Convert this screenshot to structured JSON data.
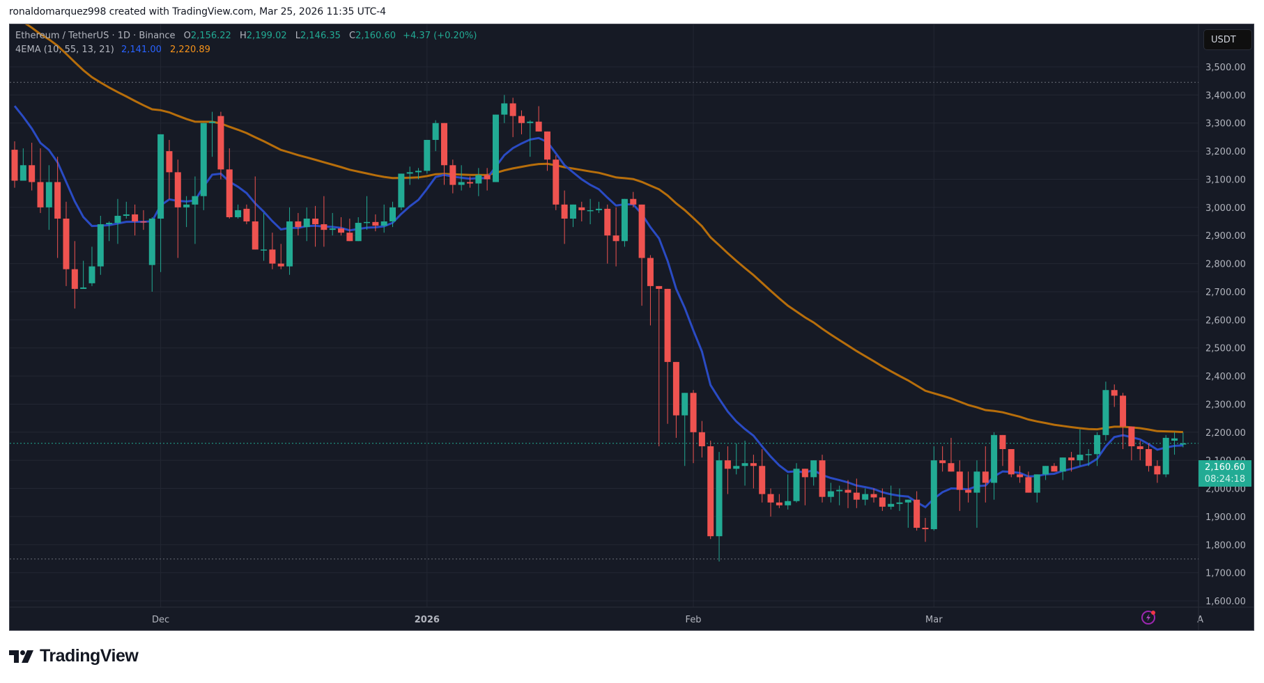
{
  "caption": "ronaldomarquez998 created with TradingView.com, Mar 25, 2026 11:35 UTC-4",
  "legend": {
    "symbol": "Ethereum / TetherUS · 1D · Binance",
    "open_label": "O",
    "open": "2,156.22",
    "high_label": "H",
    "high": "2,199.02",
    "low_label": "L",
    "low": "2,146.35",
    "close_label": "C",
    "close": "2,160.60",
    "change": "+4.37 (+0.20%)",
    "indicator": "4EMA (10, 55, 13, 21)",
    "ema_fast_value": "2,141.00",
    "ema_slow_value": "2,220.89"
  },
  "currency_button": "USDT",
  "last_price_tag": {
    "price": "2,160.60",
    "countdown": "08:24:18"
  },
  "branding": {
    "logo_text": "TradingView"
  },
  "colors": {
    "background": "#161a25",
    "grid": "#232733",
    "up": "#22ab94",
    "down": "#f23645",
    "ema_fast": "#2a4bc4",
    "ema_slow": "#b76e0b",
    "axis_text": "#b2b5be",
    "last_price": "#22ab94"
  },
  "chart_data": {
    "type": "candlestick",
    "title": "Ethereum / TetherUS · 1D · Binance",
    "xlabel": "",
    "ylabel": "USDT",
    "ylim": [
      1550,
      3620
    ],
    "y_ticks": [
      1600,
      1700,
      1800,
      1900,
      2000,
      2100,
      2200,
      2300,
      2400,
      2500,
      2600,
      2700,
      2800,
      2900,
      3000,
      3100,
      3200,
      3300,
      3400,
      3500
    ],
    "y_tick_labels": [
      "1,600.00",
      "1,700.00",
      "1,800.00",
      "1,900.00",
      "2,000.00",
      "2,100.00",
      "2,200.00",
      "2,300.00",
      "2,400.00",
      "2,500.00",
      "2,600.00",
      "2,700.00",
      "2,800.00",
      "2,900.00",
      "3,000.00",
      "3,100.00",
      "3,200.00",
      "3,300.00",
      "3,400.00",
      "3,500.00"
    ],
    "x_ticks": [
      {
        "label": "Dec",
        "index": 17,
        "bold": false
      },
      {
        "label": "2026",
        "index": 48,
        "bold": true
      },
      {
        "label": "Feb",
        "index": 79,
        "bold": false
      },
      {
        "label": "Mar",
        "index": 107,
        "bold": false
      },
      {
        "label": "A",
        "index": 138,
        "bold": false
      }
    ],
    "grid": true,
    "start_date": "2025-11-14",
    "end_date": "2026-03-25",
    "hi_dotted_line": 3445,
    "lo_dotted_line": 1749,
    "last_close": 2160.6,
    "ohlc": [
      [
        3205,
        3235,
        3070,
        3095
      ],
      [
        3095,
        3210,
        3095,
        3150
      ],
      [
        3150,
        3230,
        3060,
        3090
      ],
      [
        3090,
        3210,
        2980,
        3000
      ],
      [
        3000,
        3150,
        2920,
        3090
      ],
      [
        3090,
        3180,
        2820,
        2960
      ],
      [
        2960,
        3020,
        2720,
        2780
      ],
      [
        2780,
        2880,
        2640,
        2710
      ],
      [
        2710,
        2810,
        2760,
        2715
      ],
      [
        2730,
        2860,
        2720,
        2790
      ],
      [
        2790,
        2970,
        2760,
        2940
      ],
      [
        2940,
        2950,
        2880,
        2945
      ],
      [
        2945,
        3030,
        2870,
        2970
      ],
      [
        2970,
        3020,
        2960,
        2975
      ],
      [
        2975,
        3010,
        2900,
        2950
      ],
      [
        2950,
        2990,
        2920,
        2948
      ],
      [
        2795,
        2965,
        2700,
        2960
      ],
      [
        2960,
        3200,
        2770,
        3260
      ],
      [
        3200,
        3240,
        3030,
        3125
      ],
      [
        3125,
        3170,
        2820,
        3000
      ],
      [
        3000,
        3040,
        2930,
        3010
      ],
      [
        3010,
        3110,
        2870,
        3040
      ],
      [
        3040,
        3235,
        2990,
        3300
      ],
      [
        3300,
        3340,
        3180,
        3305
      ],
      [
        3325,
        3340,
        3100,
        3135
      ],
      [
        3135,
        3210,
        2960,
        2965
      ],
      [
        2965,
        3010,
        2960,
        2990
      ],
      [
        2995,
        3010,
        2940,
        2950
      ],
      [
        2950,
        3110,
        2880,
        2850
      ],
      [
        2850,
        2980,
        2810,
        2850
      ],
      [
        2850,
        2910,
        2780,
        2800
      ],
      [
        2800,
        2870,
        2780,
        2790
      ],
      [
        2790,
        3000,
        2760,
        2950
      ],
      [
        2950,
        2980,
        2900,
        2930
      ],
      [
        2930,
        3000,
        2880,
        2960
      ],
      [
        2960,
        3005,
        2860,
        2940
      ],
      [
        2940,
        3040,
        2860,
        2920
      ],
      [
        2920,
        2980,
        2900,
        2925
      ],
      [
        2925,
        2965,
        2900,
        2910
      ],
      [
        2910,
        2960,
        2890,
        2880
      ],
      [
        2880,
        2965,
        2880,
        2945
      ],
      [
        2945,
        3040,
        2920,
        2948
      ],
      [
        2948,
        2975,
        2915,
        2935
      ],
      [
        2935,
        3010,
        2910,
        2950
      ],
      [
        2950,
        3020,
        2930,
        3000
      ],
      [
        3000,
        3070,
        2990,
        3120
      ],
      [
        3120,
        3145,
        3080,
        3125
      ],
      [
        3125,
        3140,
        3100,
        3130
      ],
      [
        3130,
        3230,
        3120,
        3240
      ],
      [
        3240,
        3310,
        3200,
        3300
      ],
      [
        3300,
        3300,
        3080,
        3150
      ],
      [
        3150,
        3170,
        3050,
        3080
      ],
      [
        3080,
        3150,
        3060,
        3090
      ],
      [
        3090,
        3110,
        3070,
        3085
      ],
      [
        3085,
        3140,
        3040,
        3115
      ],
      [
        3115,
        3140,
        3060,
        3100
      ],
      [
        3090,
        3330,
        3100,
        3330
      ],
      [
        3330,
        3400,
        3300,
        3370
      ],
      [
        3370,
        3390,
        3250,
        3325
      ],
      [
        3325,
        3345,
        3260,
        3300
      ],
      [
        3300,
        3310,
        3180,
        3305
      ],
      [
        3305,
        3360,
        3270,
        3270
      ],
      [
        3270,
        3270,
        3130,
        3170
      ],
      [
        3170,
        3185,
        2990,
        3010
      ],
      [
        3010,
        3060,
        2870,
        2960
      ],
      [
        2960,
        2990,
        2930,
        3010
      ],
      [
        3000,
        3020,
        2950,
        2990
      ],
      [
        2990,
        3030,
        2940,
        2990
      ],
      [
        2990,
        3020,
        2980,
        2995
      ],
      [
        2995,
        3010,
        2800,
        2900
      ],
      [
        2900,
        3000,
        2790,
        2880
      ],
      [
        2880,
        3010,
        2860,
        3030
      ],
      [
        3030,
        3055,
        3000,
        3010
      ],
      [
        3010,
        3000,
        2650,
        2820
      ],
      [
        2820,
        2830,
        2580,
        2720
      ],
      [
        2720,
        2720,
        2150,
        2710
      ],
      [
        2710,
        2620,
        2230,
        2450
      ],
      [
        2450,
        2400,
        2180,
        2260
      ],
      [
        2260,
        2290,
        2080,
        2340
      ],
      [
        2340,
        2350,
        2090,
        2200
      ],
      [
        2200,
        2240,
        2110,
        2150
      ],
      [
        2150,
        2170,
        1820,
        1830
      ],
      [
        1830,
        2130,
        1740,
        2100
      ],
      [
        2100,
        2150,
        1980,
        2070
      ],
      [
        2070,
        2160,
        2050,
        2080
      ],
      [
        2080,
        2170,
        2010,
        2090
      ],
      [
        2090,
        2120,
        2000,
        2080
      ],
      [
        2080,
        2140,
        1950,
        1980
      ],
      [
        1980,
        2000,
        1900,
        1950
      ],
      [
        1950,
        1980,
        1930,
        1940
      ],
      [
        1940,
        2050,
        1925,
        1955
      ],
      [
        1955,
        2090,
        1950,
        2070
      ],
      [
        2070,
        2050,
        1940,
        2040
      ],
      [
        2040,
        2090,
        2010,
        2100
      ],
      [
        2100,
        2120,
        1950,
        1970
      ],
      [
        1970,
        2020,
        1950,
        1990
      ],
      [
        1990,
        2010,
        1940,
        1995
      ],
      [
        1995,
        2030,
        1930,
        1985
      ],
      [
        1985,
        2035,
        1930,
        1960
      ],
      [
        1960,
        2000,
        1940,
        1980
      ],
      [
        1980,
        2000,
        1950,
        1968
      ],
      [
        1968,
        2000,
        1920,
        1935
      ],
      [
        1935,
        2010,
        1925,
        1945
      ],
      [
        1945,
        2000,
        1920,
        1950
      ],
      [
        1950,
        1960,
        1860,
        1960
      ],
      [
        1960,
        1990,
        1850,
        1860
      ],
      [
        1860,
        1895,
        1810,
        1855
      ],
      [
        1855,
        2150,
        1850,
        2100
      ],
      [
        2100,
        2150,
        2060,
        2090
      ],
      [
        2090,
        2180,
        2060,
        2060
      ],
      [
        2060,
        2100,
        1920,
        1995
      ],
      [
        1995,
        2060,
        1950,
        1985
      ],
      [
        1985,
        2100,
        1860,
        2060
      ],
      [
        2060,
        2150,
        1950,
        2020
      ],
      [
        2020,
        2200,
        1960,
        2190
      ],
      [
        2190,
        2170,
        2080,
        2140
      ],
      [
        2140,
        2140,
        2040,
        2050
      ],
      [
        2050,
        2080,
        2020,
        2040
      ],
      [
        2040,
        2060,
        1990,
        1985
      ],
      [
        1985,
        2050,
        1950,
        2050
      ],
      [
        2050,
        2070,
        2030,
        2080
      ],
      [
        2080,
        2090,
        2060,
        2060
      ],
      [
        2060,
        2080,
        2030,
        2110
      ],
      [
        2110,
        2130,
        2060,
        2100
      ],
      [
        2100,
        2210,
        2080,
        2120
      ],
      [
        2120,
        2140,
        2080,
        2122
      ],
      [
        2122,
        2200,
        2080,
        2190
      ],
      [
        2190,
        2380,
        2170,
        2350
      ],
      [
        2350,
        2370,
        2290,
        2330
      ],
      [
        2330,
        2340,
        2140,
        2220
      ],
      [
        2220,
        2170,
        2100,
        2150
      ],
      [
        2150,
        2170,
        2100,
        2140
      ],
      [
        2140,
        2160,
        2060,
        2080
      ],
      [
        2080,
        2100,
        2020,
        2050
      ],
      [
        2050,
        2190,
        2040,
        2180
      ],
      [
        2170,
        2200,
        2120,
        2178
      ],
      [
        2156.22,
        2199.02,
        2146.35,
        2160.6
      ]
    ],
    "series": [
      {
        "name": "EMA 10",
        "color": "#2a4bc4",
        "last_value": 2141.0
      },
      {
        "name": "EMA 55",
        "color": "#b76e0b",
        "last_value": 2220.89
      }
    ]
  }
}
